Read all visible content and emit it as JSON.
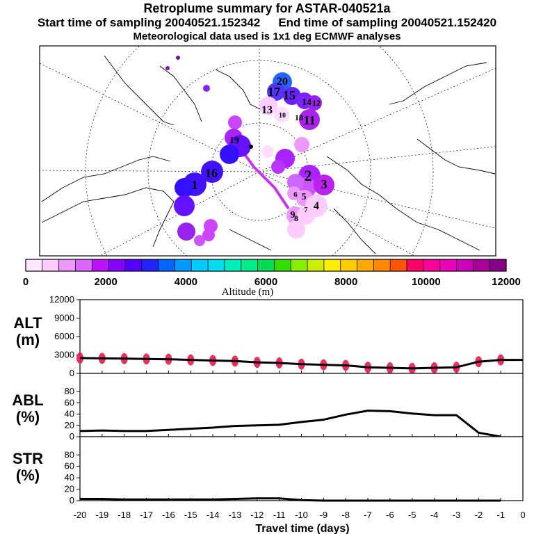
{
  "header": {
    "title": "Retroplume summary for ASTAR-040521a",
    "start_time": "Start time of sampling 20040521.152342",
    "end_time": "End time of sampling 20040521.152420",
    "met_info": "Meteorological data used is 1x1 deg ECMWF analyses"
  },
  "colorbar": {
    "title": "Altitude (m)",
    "labels": [
      "0",
      "2000",
      "4000",
      "6000",
      "8000",
      "10000",
      "12000"
    ],
    "colors": [
      "#ffe8ff",
      "#ffccff",
      "#ee99ff",
      "#dd66ff",
      "#bb11ff",
      "#8800ff",
      "#5500ff",
      "#2222ff",
      "#0066ff",
      "#0099ff",
      "#00ccff",
      "#00ddee",
      "#00eebb",
      "#00ee88",
      "#00dd55",
      "#33dd00",
      "#88ee00",
      "#ccee00",
      "#ffee00",
      "#ffcc00",
      "#ffaa00",
      "#ff8800",
      "#ff5500",
      "#ff0066",
      "#ff0099",
      "#ee00bb",
      "#cc00bb",
      "#aa0099",
      "#880088"
    ]
  },
  "map": {
    "plume_labels": [
      "20",
      "17",
      "15",
      "14",
      "12",
      "11",
      "13",
      "10",
      "19",
      "18",
      "16",
      "1",
      "2",
      "3",
      "4",
      "5",
      "6",
      "7",
      "8",
      "9"
    ]
  },
  "chart_data": [
    {
      "type": "line",
      "ylabel": "ALT",
      "yunit": "(m)",
      "ylim": [
        0,
        12000
      ],
      "yticks": [
        "12000",
        "9000",
        "6000",
        "3000",
        "0"
      ],
      "x": [
        -20,
        -19,
        -18,
        -17,
        -16,
        -15,
        -14,
        -13,
        -12,
        -11,
        -10,
        -9,
        -8,
        -7,
        -6,
        -5,
        -4,
        -3,
        -2,
        -1,
        0
      ],
      "values": [
        2500,
        2450,
        2400,
        2350,
        2300,
        2200,
        2100,
        2000,
        1800,
        1700,
        1500,
        1400,
        1300,
        1000,
        900,
        800,
        900,
        1000,
        1900,
        2200,
        2200
      ],
      "marker_color": "#ee2255"
    },
    {
      "type": "line",
      "ylabel": "ABL",
      "yunit": "(%)",
      "ylim": [
        0,
        100
      ],
      "yticks": [
        "80",
        "60",
        "40",
        "20",
        "0"
      ],
      "x": [
        -20,
        -19,
        -18,
        -17,
        -16,
        -15,
        -14,
        -13,
        -12,
        -11,
        -10,
        -9,
        -8,
        -7,
        -6,
        -5,
        -4,
        -3,
        -2,
        -1
      ],
      "values": [
        10,
        11,
        10,
        10,
        12,
        14,
        16,
        19,
        20,
        21,
        26,
        30,
        39,
        46,
        45,
        41,
        38,
        38,
        7,
        0
      ]
    },
    {
      "type": "line",
      "ylabel": "STR",
      "yunit": "(%)",
      "ylim": [
        0,
        100
      ],
      "yticks": [
        "80",
        "60",
        "40",
        "20",
        "0"
      ],
      "x": [
        -20,
        -19,
        -18,
        -17,
        -16,
        -15,
        -14,
        -13,
        -12,
        -11,
        -10,
        -9,
        -8,
        -7,
        -6,
        -5,
        -4,
        -3,
        -2,
        -1
      ],
      "values": [
        3,
        3,
        2,
        2,
        2,
        2,
        2,
        3,
        4,
        4,
        1,
        0,
        0,
        0,
        0,
        0,
        0,
        0,
        0,
        0
      ]
    }
  ],
  "xaxis": {
    "label": "Travel time (days)",
    "ticks": [
      "-20",
      "-19",
      "-18",
      "-17",
      "-16",
      "-15",
      "-14",
      "-13",
      "-12",
      "-11",
      "-10",
      "-9",
      "-8",
      "-7",
      "-6",
      "-5",
      "-4",
      "-3",
      "-2",
      "-1",
      "0"
    ]
  }
}
